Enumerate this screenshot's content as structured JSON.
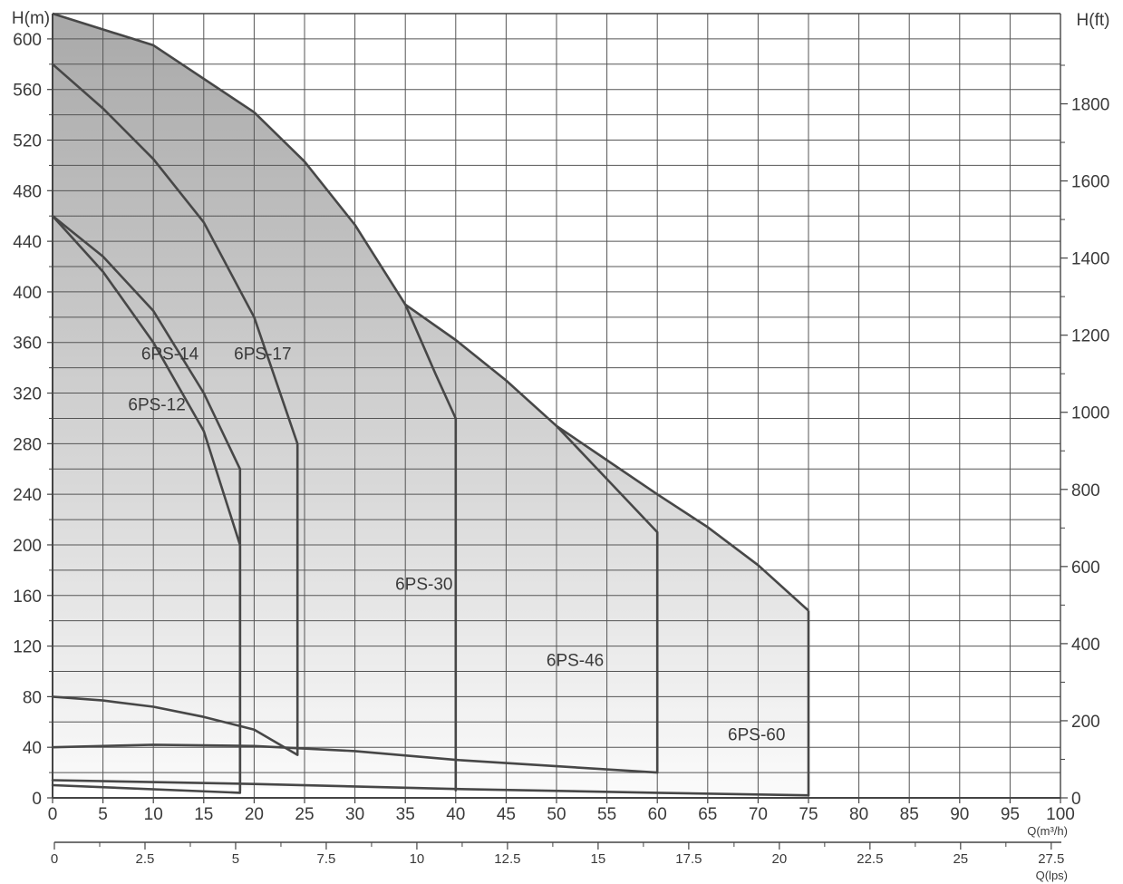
{
  "chart_data": {
    "type": "line",
    "title": "",
    "x_axis_primary": {
      "label": "Q(m³/h)",
      "range": [
        0,
        100
      ],
      "ticks": [
        0,
        5,
        10,
        15,
        20,
        25,
        30,
        35,
        40,
        45,
        50,
        55,
        60,
        65,
        70,
        75,
        80,
        85,
        90,
        95,
        100
      ],
      "tick_labels": [
        "0",
        "5",
        "10",
        "15",
        "20",
        "25",
        "30",
        "35",
        "40",
        "45",
        "50",
        "55",
        "60",
        "65",
        "70",
        "75",
        "80",
        "85",
        "90",
        "95",
        "100"
      ]
    },
    "x_axis_secondary": {
      "label": "Q(lps)",
      "range": [
        0,
        27.78
      ],
      "ticks": [
        0,
        2.5,
        5,
        7.5,
        10,
        12.5,
        15,
        17.5,
        20,
        22.5,
        25,
        27.5
      ],
      "tick_labels": [
        "0",
        "2.5",
        "5",
        "7.5",
        "10",
        "12.5",
        "15",
        "17.5",
        "20",
        "22.5",
        "25",
        "27.5"
      ]
    },
    "y_axis_left": {
      "label": "H(m)",
      "range": [
        0,
        620
      ],
      "ticks": [
        0,
        40,
        80,
        120,
        160,
        200,
        240,
        280,
        320,
        360,
        400,
        440,
        480,
        520,
        560,
        600
      ],
      "tick_labels": [
        "0",
        "40",
        "80",
        "120",
        "160",
        "200",
        "240",
        "280",
        "320",
        "360",
        "400",
        "440",
        "480",
        "520",
        "560",
        "600"
      ]
    },
    "y_axis_right": {
      "label": "H(ft)",
      "range": [
        0,
        2034
      ],
      "ticks": [
        0,
        200,
        400,
        600,
        800,
        1000,
        1200,
        1400,
        1600,
        1800
      ],
      "tick_labels": [
        "0",
        "200",
        "400",
        "600",
        "800",
        "1000",
        "1200",
        "1400",
        "1600",
        "1800"
      ]
    },
    "grid": true,
    "legend": "none",
    "envelope": [
      [
        0,
        620
      ],
      [
        10,
        595
      ],
      [
        20,
        542
      ],
      [
        25,
        503
      ],
      [
        30,
        453
      ],
      [
        35,
        390
      ],
      [
        40,
        362
      ],
      [
        45,
        330
      ],
      [
        50,
        294
      ],
      [
        55,
        267
      ],
      [
        60,
        240
      ],
      [
        65,
        214
      ],
      [
        70,
        184
      ],
      [
        75,
        148
      ],
      [
        75,
        2
      ],
      [
        0,
        10
      ]
    ],
    "series": [
      {
        "name": "6PS-12",
        "label_position": [
          7.5,
          310
        ],
        "points": [
          [
            0,
            460
          ],
          [
            5,
            416
          ],
          [
            10,
            360
          ],
          [
            15,
            290
          ],
          [
            18.6,
            200
          ],
          [
            18.6,
            4
          ],
          [
            0,
            10
          ]
        ]
      },
      {
        "name": "6PS-14",
        "label_position": [
          8.8,
          350
        ],
        "points": [
          [
            0,
            460
          ],
          [
            5,
            428
          ],
          [
            10,
            385
          ],
          [
            15,
            320
          ],
          [
            18.6,
            260
          ],
          [
            18.6,
            6
          ]
        ]
      },
      {
        "name": "6PS-17",
        "label_position": [
          18,
          350
        ],
        "points": [
          [
            0,
            580
          ],
          [
            5,
            545
          ],
          [
            10,
            505
          ],
          [
            15,
            455
          ],
          [
            20,
            380
          ],
          [
            24.3,
            280
          ],
          [
            24.3,
            34
          ],
          [
            20,
            54
          ],
          [
            15,
            64
          ],
          [
            10,
            72
          ],
          [
            5,
            77
          ],
          [
            0,
            80
          ]
        ]
      },
      {
        "name": "6PS-30",
        "label_position": [
          34,
          168
        ],
        "points": [
          [
            35,
            390
          ],
          [
            38,
            335
          ],
          [
            40,
            300
          ],
          [
            40,
            6
          ]
        ]
      },
      {
        "name": "6PS-46",
        "label_position": [
          49,
          108
        ],
        "points": [
          [
            50,
            294
          ],
          [
            55,
            252
          ],
          [
            60,
            210
          ],
          [
            60,
            20
          ],
          [
            50,
            25
          ],
          [
            40,
            30
          ],
          [
            30,
            37
          ],
          [
            20,
            41
          ],
          [
            10,
            42
          ],
          [
            0,
            40
          ]
        ]
      },
      {
        "name": "6PS-60",
        "label_position": [
          67,
          49
        ],
        "points": [
          [
            0,
            14
          ],
          [
            20,
            11
          ],
          [
            40,
            7
          ],
          [
            60,
            4
          ],
          [
            75,
            2
          ]
        ]
      }
    ]
  }
}
